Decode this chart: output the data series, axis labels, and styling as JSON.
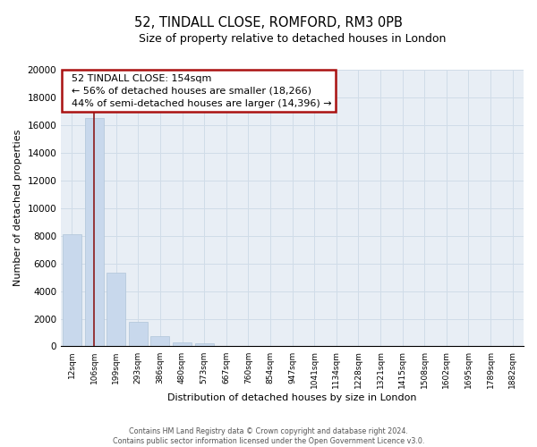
{
  "title": "52, TINDALL CLOSE, ROMFORD, RM3 0PB",
  "subtitle": "Size of property relative to detached houses in London",
  "xlabel": "Distribution of detached houses by size in London",
  "ylabel": "Number of detached properties",
  "bar_labels": [
    "12sqm",
    "106sqm",
    "199sqm",
    "293sqm",
    "386sqm",
    "480sqm",
    "573sqm",
    "667sqm",
    "760sqm",
    "854sqm",
    "947sqm",
    "1041sqm",
    "1134sqm",
    "1228sqm",
    "1321sqm",
    "1415sqm",
    "1508sqm",
    "1602sqm",
    "1695sqm",
    "1789sqm",
    "1882sqm"
  ],
  "bar_values": [
    8100,
    16500,
    5300,
    1750,
    750,
    300,
    250,
    0,
    0,
    0,
    0,
    0,
    0,
    0,
    0,
    0,
    0,
    0,
    0,
    0,
    0
  ],
  "bar_color": "#c8d8ec",
  "bar_edge_color": "#b0c4d8",
  "vline_color": "#8b1a1a",
  "ylim": [
    0,
    20000
  ],
  "yticks": [
    0,
    2000,
    4000,
    6000,
    8000,
    10000,
    12000,
    14000,
    16000,
    18000,
    20000
  ],
  "annotation_box_text_line1": "52 TINDALL CLOSE: 154sqm",
  "annotation_box_text_line2": "← 56% of detached houses are smaller (18,266)",
  "annotation_box_text_line3": "44% of semi-detached houses are larger (14,396) →",
  "footer_line1": "Contains HM Land Registry data © Crown copyright and database right 2024.",
  "footer_line2": "Contains public sector information licensed under the Open Government Licence v3.0.",
  "grid_color": "#d0dce8",
  "background_color": "#e8eef5",
  "ann_box_edge_color": "#aa1111"
}
